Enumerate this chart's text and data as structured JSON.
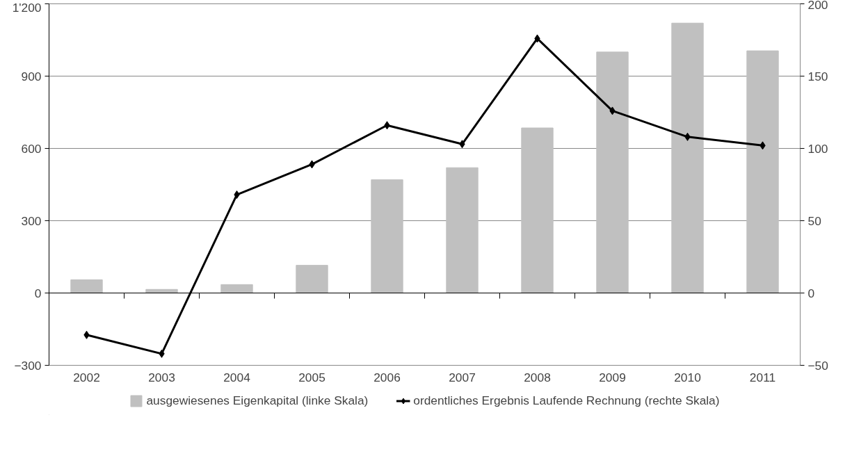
{
  "chart_data": {
    "type": "bar",
    "categories": [
      "2002",
      "2003",
      "2004",
      "2005",
      "2006",
      "2007",
      "2008",
      "2009",
      "2010",
      "2011"
    ],
    "series": [
      {
        "name": "ausgewiesenes Eigenkapital (linke Skala)",
        "color": "#c0c0c0",
        "values": [
          55,
          15,
          35,
          115,
          470,
          520,
          685,
          1000,
          1120,
          1005
        ]
      },
      {
        "name": "ordentliches Ergebnis Laufende Rechnung (rechte Skala)",
        "type": "line",
        "axis": "y2",
        "color": "#000000",
        "marker": "diamond",
        "values": [
          -29,
          -42,
          68,
          89,
          116,
          103,
          176,
          126,
          108,
          102
        ]
      }
    ],
    "ylim": [
      -300,
      1200
    ],
    "yticks": [
      -300,
      0,
      300,
      600,
      900,
      {
        "value": 1200,
        "label": "1'200"
      }
    ],
    "y2lim": [
      -50,
      200
    ],
    "y2ticks": [
      -50,
      0,
      50,
      100,
      150,
      200
    ],
    "grid": "y",
    "legend": "bottom"
  }
}
